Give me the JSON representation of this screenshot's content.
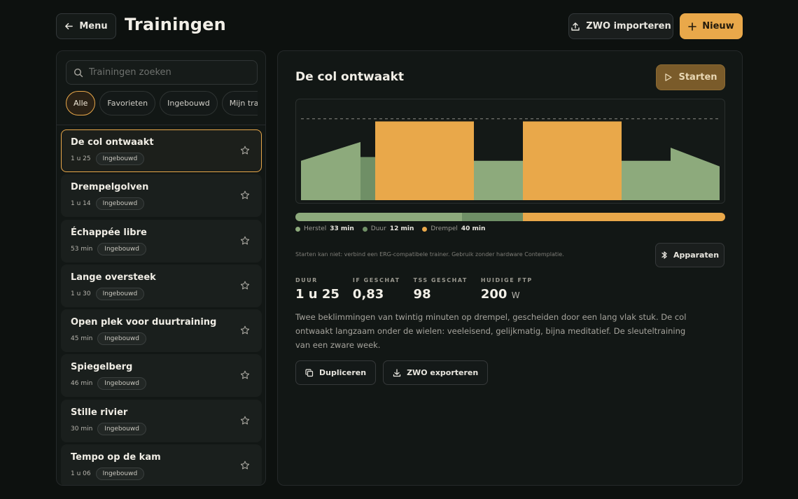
{
  "header": {
    "menu_label": "Menu",
    "title": "Trainingen",
    "import_label": "ZWO importeren",
    "new_label": "Nieuw"
  },
  "sidebar": {
    "search_placeholder": "Trainingen zoeken",
    "filters": [
      "Alle",
      "Favorieten",
      "Ingebouwd",
      "Mijn trainingen"
    ],
    "active_filter": "Alle",
    "items": [
      {
        "title": "De col ontwaakt",
        "duration": "1 u 25",
        "badge": "Ingebouwd",
        "selected": true
      },
      {
        "title": "Drempelgolven",
        "duration": "1 u 14",
        "badge": "Ingebouwd"
      },
      {
        "title": "Échappée libre",
        "duration": "53 min",
        "badge": "Ingebouwd"
      },
      {
        "title": "Lange oversteek",
        "duration": "1 u 30",
        "badge": "Ingebouwd"
      },
      {
        "title": "Open plek voor duurtraining",
        "duration": "45 min",
        "badge": "Ingebouwd"
      },
      {
        "title": "Spiegelberg",
        "duration": "46 min",
        "badge": "Ingebouwd"
      },
      {
        "title": "Stille rivier",
        "duration": "30 min",
        "badge": "Ingebouwd"
      },
      {
        "title": "Tempo op de kam",
        "duration": "1 u 06",
        "badge": "Ingebouwd"
      }
    ]
  },
  "detail": {
    "title": "De col ontwaakt",
    "start_label": "Starten",
    "zones": [
      {
        "label": "Herstel",
        "value": "33 min",
        "minutes": 33,
        "color": "#8daa7c"
      },
      {
        "label": "Duur",
        "value": "12 min",
        "minutes": 12,
        "color": "#6f8f66"
      },
      {
        "label": "Drempel",
        "value": "40 min",
        "minutes": 40,
        "color": "#e9a84a"
      }
    ],
    "profile": [
      {
        "type": "ramp",
        "from": 0.42,
        "to": 0.62,
        "zone": "Herstel"
      },
      {
        "type": "steady",
        "level": 0.46,
        "zone": "Duur"
      },
      {
        "type": "steady",
        "level": 0.84,
        "zone": "Drempel"
      },
      {
        "type": "steady",
        "level": 0.42,
        "zone": "Herstel"
      },
      {
        "type": "steady",
        "level": 0.84,
        "zone": "Drempel"
      },
      {
        "type": "steady",
        "level": 0.42,
        "zone": "Herstel"
      },
      {
        "type": "ramp",
        "from": 0.56,
        "to": 0.36,
        "zone": "Herstel"
      }
    ],
    "note": "Starten kan niet: verbind een ERG-compatibele trainer. Gebruik zonder hardware Contemplatie.",
    "devices_label": "Apparaten",
    "stats": [
      {
        "label": "DUUR",
        "value": "1 u 25",
        "unit": ""
      },
      {
        "label": "IF GESCHAT",
        "value": "0,83",
        "unit": ""
      },
      {
        "label": "TSS GESCHAT",
        "value": "98",
        "unit": ""
      },
      {
        "label": "HUIDIGE FTP",
        "value": "200",
        "unit": "W"
      }
    ],
    "description": "Twee beklimmingen van twintig minuten op drempel, gescheiden door een lang vlak stuk. De col ontwaakt langzaam onder de wielen: veeleisend, gelijkmatig, bijna meditatief. De sleuteltraining van een zware week.",
    "duplicate_label": "Dupliceren",
    "export_label": "ZWO exporteren"
  },
  "colors": {
    "accent": "#e9a84a",
    "recovery": "#8daa7c",
    "endurance": "#6f8f66",
    "threshold": "#e9a84a"
  }
}
